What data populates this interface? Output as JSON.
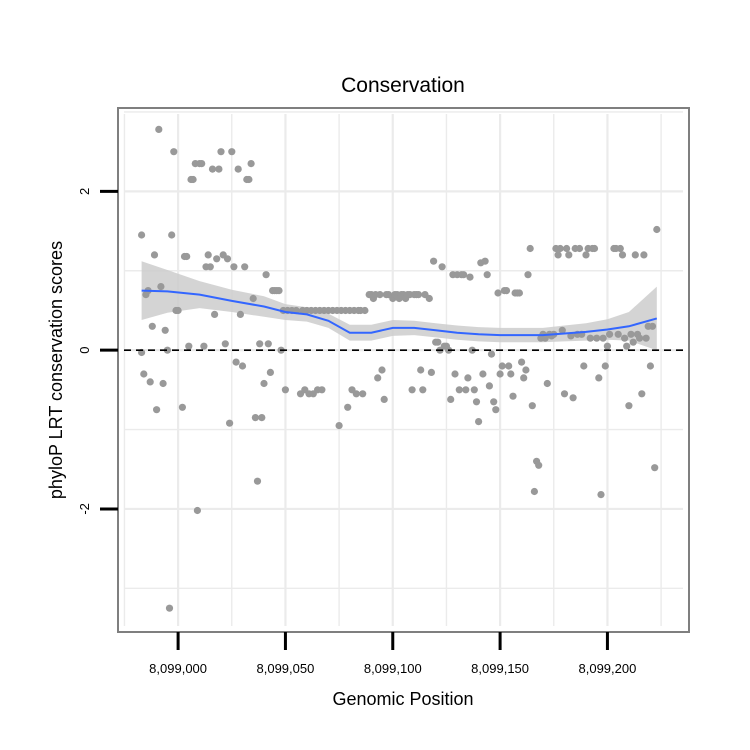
{
  "chart_data": {
    "type": "scatter",
    "title": "Conservation",
    "xlabel": "Genomic Position",
    "ylabel": "phyloP LRT conservation scores",
    "xlim": [
      8098972,
      8099238
    ],
    "ylim": [
      -3.55,
      3.05
    ],
    "x_ticks": [
      8099000,
      8099050,
      8099100,
      8099150,
      8099200
    ],
    "x_tick_labels": [
      "8,099,000",
      "8,099,050",
      "8,099,100",
      "8,099,150",
      "8,099,200"
    ],
    "y_ticks": [
      -2,
      0,
      2
    ],
    "y_tick_labels": [
      "-2",
      "0",
      "2"
    ],
    "reference_line": {
      "y": 0,
      "style": "dashed"
    },
    "grid": true,
    "colors": {
      "points": "#999999",
      "smooth_line": "#3366ff",
      "confidence_band": "#cccccc",
      "grid": "#ebebeb",
      "frame": "#7f7f7f",
      "reference_line": "#000000"
    },
    "points": [
      [
        8098983,
        1.45
      ],
      [
        8098983,
        -0.03
      ],
      [
        8098984,
        -0.3
      ],
      [
        8098985,
        0.7
      ],
      [
        8098986,
        0.75
      ],
      [
        8098987,
        -0.4
      ],
      [
        8098988,
        0.3
      ],
      [
        8098989,
        1.2
      ],
      [
        8098990,
        -0.75
      ],
      [
        8098991,
        2.78
      ],
      [
        8098992,
        0.8
      ],
      [
        8098993,
        -0.42
      ],
      [
        8098994,
        0.25
      ],
      [
        8098995,
        0.0
      ],
      [
        8098996,
        -3.25
      ],
      [
        8098997,
        1.45
      ],
      [
        8098998,
        2.5
      ],
      [
        8098999,
        0.5
      ],
      [
        8099000,
        0.5
      ],
      [
        8099002,
        -0.72
      ],
      [
        8099003,
        1.18
      ],
      [
        8099004,
        1.18
      ],
      [
        8099005,
        0.05
      ],
      [
        8099006,
        2.15
      ],
      [
        8099007,
        2.15
      ],
      [
        8099008,
        2.35
      ],
      [
        8099009,
        -2.02
      ],
      [
        8099010,
        2.35
      ],
      [
        8099011,
        2.35
      ],
      [
        8099012,
        0.05
      ],
      [
        8099013,
        1.05
      ],
      [
        8099014,
        1.2
      ],
      [
        8099015,
        1.05
      ],
      [
        8099016,
        2.28
      ],
      [
        8099017,
        0.45
      ],
      [
        8099018,
        1.15
      ],
      [
        8099019,
        2.28
      ],
      [
        8099020,
        2.5
      ],
      [
        8099021,
        1.2
      ],
      [
        8099022,
        0.08
      ],
      [
        8099023,
        1.15
      ],
      [
        8099024,
        -0.92
      ],
      [
        8099025,
        2.5
      ],
      [
        8099026,
        1.05
      ],
      [
        8099027,
        -0.15
      ],
      [
        8099028,
        2.28
      ],
      [
        8099029,
        0.45
      ],
      [
        8099030,
        -0.2
      ],
      [
        8099031,
        1.05
      ],
      [
        8099032,
        2.15
      ],
      [
        8099033,
        2.15
      ],
      [
        8099034,
        2.35
      ],
      [
        8099035,
        0.65
      ],
      [
        8099036,
        -0.85
      ],
      [
        8099037,
        -1.65
      ],
      [
        8099038,
        0.08
      ],
      [
        8099039,
        -0.85
      ],
      [
        8099040,
        -0.42
      ],
      [
        8099041,
        0.95
      ],
      [
        8099042,
        0.08
      ],
      [
        8099043,
        -0.28
      ],
      [
        8099044,
        0.75
      ],
      [
        8099045,
        0.75
      ],
      [
        8099046,
        0.75
      ],
      [
        8099047,
        0.75
      ],
      [
        8099048,
        0.0
      ],
      [
        8099049,
        0.5
      ],
      [
        8099050,
        -0.5
      ],
      [
        8099051,
        0.5
      ],
      [
        8099053,
        0.5
      ],
      [
        8099055,
        0.5
      ],
      [
        8099057,
        -0.55
      ],
      [
        8099058,
        0.5
      ],
      [
        8099059,
        -0.5
      ],
      [
        8099060,
        0.5
      ],
      [
        8099061,
        -0.55
      ],
      [
        8099062,
        0.5
      ],
      [
        8099063,
        -0.55
      ],
      [
        8099064,
        0.5
      ],
      [
        8099065,
        -0.5
      ],
      [
        8099066,
        0.5
      ],
      [
        8099067,
        -0.5
      ],
      [
        8099068,
        0.5
      ],
      [
        8099070,
        0.5
      ],
      [
        8099072,
        0.5
      ],
      [
        8099074,
        0.5
      ],
      [
        8099075,
        -0.95
      ],
      [
        8099076,
        0.5
      ],
      [
        8099078,
        0.5
      ],
      [
        8099079,
        -0.72
      ],
      [
        8099080,
        0.5
      ],
      [
        8099081,
        -0.5
      ],
      [
        8099082,
        0.5
      ],
      [
        8099083,
        -0.55
      ],
      [
        8099084,
        0.5
      ],
      [
        8099085,
        0.5
      ],
      [
        8099086,
        -0.55
      ],
      [
        8099087,
        0.5
      ],
      [
        8099089,
        0.7
      ],
      [
        8099090,
        0.7
      ],
      [
        8099091,
        0.65
      ],
      [
        8099092,
        0.7
      ],
      [
        8099093,
        -0.35
      ],
      [
        8099094,
        0.7
      ],
      [
        8099095,
        -0.25
      ],
      [
        8099096,
        -0.62
      ],
      [
        8099097,
        0.7
      ],
      [
        8099098,
        0.7
      ],
      [
        8099100,
        0.65
      ],
      [
        8099101,
        0.7
      ],
      [
        8099102,
        0.7
      ],
      [
        8099103,
        0.65
      ],
      [
        8099104,
        0.7
      ],
      [
        8099105,
        0.7
      ],
      [
        8099106,
        0.65
      ],
      [
        8099107,
        0.7
      ],
      [
        8099108,
        0.7
      ],
      [
        8099109,
        -0.5
      ],
      [
        8099110,
        0.7
      ],
      [
        8099111,
        0.7
      ],
      [
        8099112,
        0.7
      ],
      [
        8099113,
        -0.25
      ],
      [
        8099114,
        -0.5
      ],
      [
        8099115,
        0.7
      ],
      [
        8099117,
        0.65
      ],
      [
        8099118,
        -0.28
      ],
      [
        8099119,
        1.12
      ],
      [
        8099120,
        0.1
      ],
      [
        8099121,
        0.1
      ],
      [
        8099122,
        0.0
      ],
      [
        8099123,
        1.05
      ],
      [
        8099124,
        0.05
      ],
      [
        8099125,
        0.05
      ],
      [
        8099126,
        0.0
      ],
      [
        8099127,
        -0.62
      ],
      [
        8099128,
        0.95
      ],
      [
        8099129,
        -0.3
      ],
      [
        8099130,
        0.95
      ],
      [
        8099131,
        -0.5
      ],
      [
        8099132,
        0.95
      ],
      [
        8099133,
        0.95
      ],
      [
        8099134,
        -0.5
      ],
      [
        8099135,
        -0.35
      ],
      [
        8099136,
        0.92
      ],
      [
        8099137,
        0.0
      ],
      [
        8099138,
        -0.5
      ],
      [
        8099139,
        -0.65
      ],
      [
        8099140,
        -0.9
      ],
      [
        8099141,
        1.1
      ],
      [
        8099142,
        -0.3
      ],
      [
        8099143,
        1.12
      ],
      [
        8099144,
        0.95
      ],
      [
        8099145,
        -0.45
      ],
      [
        8099146,
        -0.05
      ],
      [
        8099147,
        -0.65
      ],
      [
        8099148,
        -0.75
      ],
      [
        8099149,
        0.72
      ],
      [
        8099150,
        -0.3
      ],
      [
        8099151,
        -0.2
      ],
      [
        8099152,
        0.75
      ],
      [
        8099153,
        0.75
      ],
      [
        8099154,
        -0.2
      ],
      [
        8099155,
        -0.3
      ],
      [
        8099156,
        -0.58
      ],
      [
        8099157,
        0.72
      ],
      [
        8099158,
        0.72
      ],
      [
        8099159,
        0.72
      ],
      [
        8099160,
        -0.15
      ],
      [
        8099161,
        -0.35
      ],
      [
        8099162,
        -0.25
      ],
      [
        8099163,
        0.95
      ],
      [
        8099164,
        1.28
      ],
      [
        8099165,
        -0.7
      ],
      [
        8099166,
        -1.78
      ],
      [
        8099167,
        -1.4
      ],
      [
        8099168,
        -1.45
      ],
      [
        8099169,
        0.15
      ],
      [
        8099170,
        0.2
      ],
      [
        8099171,
        0.15
      ],
      [
        8099172,
        -0.42
      ],
      [
        8099173,
        0.2
      ],
      [
        8099174,
        0.18
      ],
      [
        8099175,
        0.2
      ],
      [
        8099176,
        1.28
      ],
      [
        8099177,
        1.2
      ],
      [
        8099178,
        1.28
      ],
      [
        8099179,
        0.25
      ],
      [
        8099180,
        -0.55
      ],
      [
        8099181,
        1.28
      ],
      [
        8099182,
        1.2
      ],
      [
        8099183,
        0.18
      ],
      [
        8099184,
        -0.6
      ],
      [
        8099185,
        1.28
      ],
      [
        8099186,
        0.2
      ],
      [
        8099187,
        1.28
      ],
      [
        8099188,
        0.2
      ],
      [
        8099189,
        -0.2
      ],
      [
        8099190,
        1.2
      ],
      [
        8099191,
        1.28
      ],
      [
        8099192,
        0.15
      ],
      [
        8099193,
        1.28
      ],
      [
        8099194,
        1.28
      ],
      [
        8099195,
        0.15
      ],
      [
        8099196,
        -0.35
      ],
      [
        8099197,
        -1.82
      ],
      [
        8099198,
        0.15
      ],
      [
        8099199,
        -0.2
      ],
      [
        8099200,
        0.05
      ],
      [
        8099201,
        0.2
      ],
      [
        8099203,
        1.28
      ],
      [
        8099204,
        1.28
      ],
      [
        8099205,
        0.2
      ],
      [
        8099206,
        1.28
      ],
      [
        8099207,
        1.2
      ],
      [
        8099208,
        0.15
      ],
      [
        8099209,
        0.05
      ],
      [
        8099210,
        -0.7
      ],
      [
        8099211,
        0.2
      ],
      [
        8099212,
        0.1
      ],
      [
        8099213,
        1.2
      ],
      [
        8099214,
        0.2
      ],
      [
        8099215,
        0.15
      ],
      [
        8099216,
        -0.55
      ],
      [
        8099217,
        1.2
      ],
      [
        8099218,
        0.15
      ],
      [
        8099219,
        0.3
      ],
      [
        8099220,
        -0.2
      ],
      [
        8099221,
        0.3
      ],
      [
        8099222,
        -1.48
      ],
      [
        8099223,
        1.52
      ]
    ],
    "smooth": {
      "x": [
        8098983,
        8098995,
        8099010,
        8099025,
        8099040,
        8099050,
        8099060,
        8099070,
        8099080,
        8099090,
        8099100,
        8099110,
        8099120,
        8099130,
        8099140,
        8099150,
        8099160,
        8099170,
        8099180,
        8099190,
        8099200,
        8099210,
        8099223
      ],
      "y": [
        0.75,
        0.74,
        0.7,
        0.62,
        0.55,
        0.48,
        0.45,
        0.37,
        0.22,
        0.22,
        0.28,
        0.28,
        0.25,
        0.22,
        0.2,
        0.19,
        0.19,
        0.19,
        0.21,
        0.23,
        0.26,
        0.3,
        0.4
      ],
      "lower": [
        0.38,
        0.47,
        0.53,
        0.48,
        0.42,
        0.38,
        0.36,
        0.28,
        0.12,
        0.12,
        0.18,
        0.19,
        0.16,
        0.13,
        0.11,
        0.1,
        0.1,
        0.1,
        0.11,
        0.12,
        0.13,
        0.12,
        0.0
      ],
      "upper": [
        1.12,
        1.01,
        0.87,
        0.76,
        0.68,
        0.58,
        0.54,
        0.46,
        0.32,
        0.32,
        0.38,
        0.37,
        0.34,
        0.31,
        0.29,
        0.28,
        0.28,
        0.28,
        0.31,
        0.34,
        0.39,
        0.48,
        0.8
      ]
    }
  }
}
